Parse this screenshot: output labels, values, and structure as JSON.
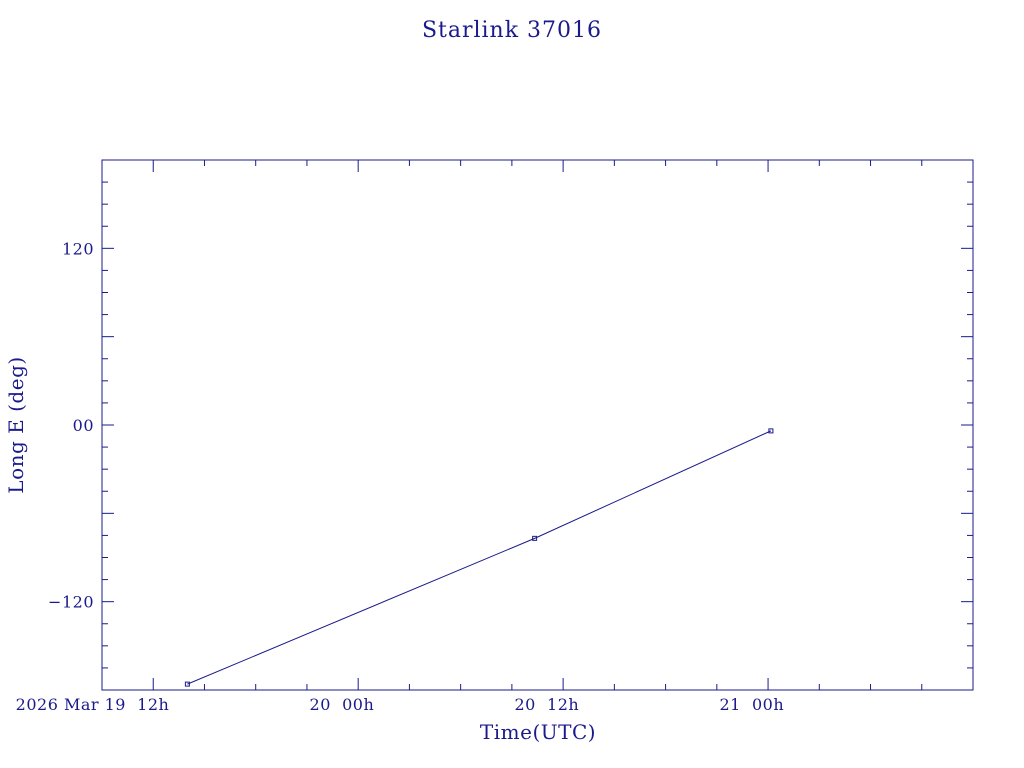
{
  "chart_data": {
    "type": "line",
    "title": "Starlink 37016",
    "xlabel": "Time(UTC)",
    "ylabel": "Long E (deg)",
    "x_unit": "hours",
    "xlim": [
      "2026-03-19 09:00",
      "2026-03-21 12:00"
    ],
    "ylim": [
      -180,
      180
    ],
    "grid": false,
    "x_ticks": [
      {
        "value": "2026-03-19 12:00",
        "label": "2026 Mar 19  12h"
      },
      {
        "value": "2026-03-20 00:00",
        "label": "20  00h"
      },
      {
        "value": "2026-03-20 12:00",
        "label": "20  12h"
      },
      {
        "value": "2026-03-21 00:00",
        "label": "21  00h"
      }
    ],
    "y_ticks": [
      {
        "value": 120,
        "label": "120"
      },
      {
        "value": 0,
        "label": "00"
      },
      {
        "value": -120,
        "label": "−120"
      }
    ],
    "series": [
      {
        "x": [
          "2026-03-19 14:00",
          "2026-03-20 10:20",
          "2026-03-21 00:10"
        ],
        "y": [
          -176,
          -77,
          -4
        ]
      }
    ],
    "colors": {
      "ink": "#1a1a8c"
    }
  }
}
